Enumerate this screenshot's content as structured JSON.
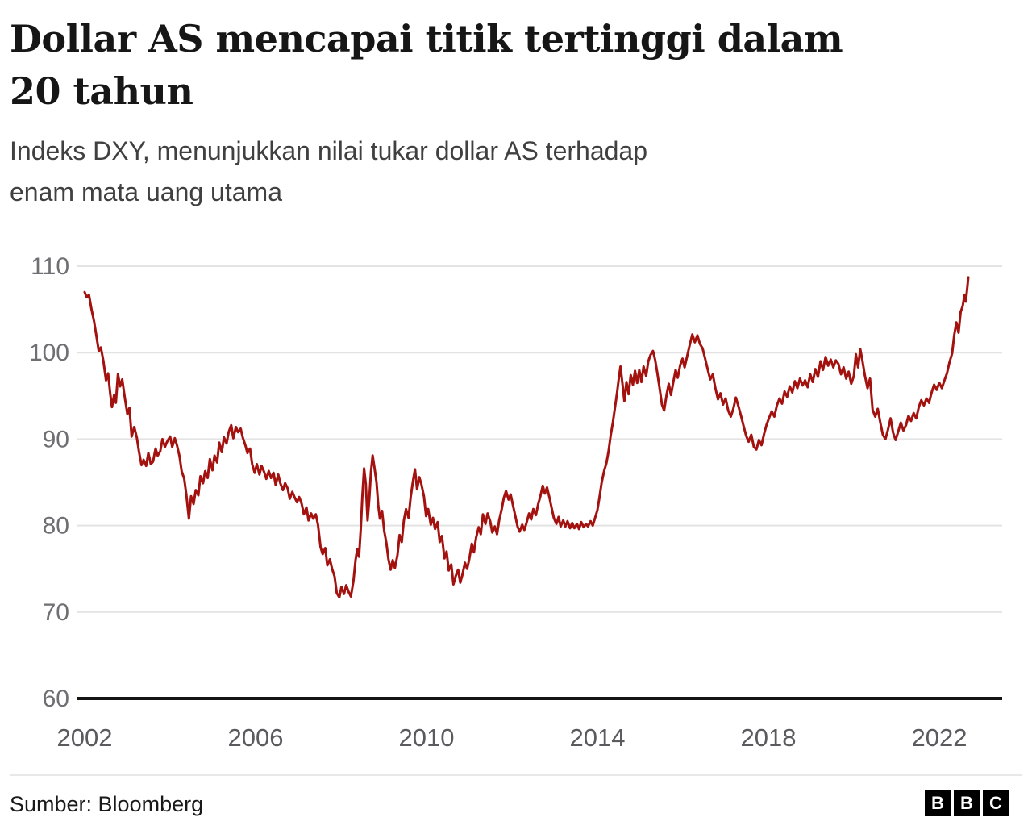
{
  "header": {
    "title": "Dollar AS mencapai titik tertinggi dalam 20 tahun",
    "title_lines": [
      "Dollar AS mencapai titik tertinggi dalam",
      "20 tahun"
    ],
    "subtitle": "Indeks DXY, menunjukkan nilai tukar dollar AS terhadap enam mata uang utama",
    "subtitle_lines": [
      "Indeks DXY, menunjukkan nilai tukar dollar AS terhadap",
      "enam mata uang utama"
    ]
  },
  "chart_data": {
    "type": "line",
    "series_name": "Indeks DXY",
    "line_color": "#a3120f",
    "grid": "horizontal",
    "legend": "none",
    "x_ticks": [
      2002,
      2006,
      2010,
      2014,
      2018,
      2022
    ],
    "y_ticks": [
      60,
      70,
      80,
      90,
      100,
      110
    ],
    "x_domain": [
      2002,
      2023
    ],
    "y_domain": [
      60,
      110
    ],
    "points": [
      [
        2002.0,
        107.0
      ],
      [
        2002.05,
        106.4
      ],
      [
        2002.1,
        106.7
      ],
      [
        2002.16,
        105.0
      ],
      [
        2002.22,
        103.6
      ],
      [
        2002.28,
        101.8
      ],
      [
        2002.33,
        100.2
      ],
      [
        2002.38,
        100.6
      ],
      [
        2002.44,
        99.0
      ],
      [
        2002.5,
        96.8
      ],
      [
        2002.55,
        97.6
      ],
      [
        2002.6,
        95.2
      ],
      [
        2002.64,
        93.7
      ],
      [
        2002.69,
        95.1
      ],
      [
        2002.73,
        94.2
      ],
      [
        2002.78,
        97.5
      ],
      [
        2002.83,
        96.1
      ],
      [
        2002.88,
        96.9
      ],
      [
        2002.94,
        94.8
      ],
      [
        2003.0,
        92.9
      ],
      [
        2003.05,
        93.6
      ],
      [
        2003.1,
        90.3
      ],
      [
        2003.16,
        91.4
      ],
      [
        2003.22,
        90.2
      ],
      [
        2003.27,
        88.6
      ],
      [
        2003.33,
        87.0
      ],
      [
        2003.38,
        87.6
      ],
      [
        2003.44,
        86.9
      ],
      [
        2003.49,
        88.4
      ],
      [
        2003.55,
        87.1
      ],
      [
        2003.6,
        87.4
      ],
      [
        2003.66,
        88.9
      ],
      [
        2003.71,
        88.1
      ],
      [
        2003.77,
        88.6
      ],
      [
        2003.82,
        90.0
      ],
      [
        2003.88,
        89.1
      ],
      [
        2003.93,
        89.7
      ],
      [
        2004.0,
        90.3
      ],
      [
        2004.05,
        89.1
      ],
      [
        2004.11,
        90.1
      ],
      [
        2004.16,
        89.3
      ],
      [
        2004.22,
        88.0
      ],
      [
        2004.27,
        86.3
      ],
      [
        2004.33,
        85.4
      ],
      [
        2004.38,
        83.6
      ],
      [
        2004.44,
        80.8
      ],
      [
        2004.49,
        83.4
      ],
      [
        2004.55,
        82.5
      ],
      [
        2004.6,
        84.1
      ],
      [
        2004.66,
        83.5
      ],
      [
        2004.71,
        85.7
      ],
      [
        2004.77,
        84.9
      ],
      [
        2004.82,
        86.3
      ],
      [
        2004.88,
        85.5
      ],
      [
        2004.93,
        87.7
      ],
      [
        2004.99,
        86.4
      ],
      [
        2005.04,
        88.1
      ],
      [
        2005.1,
        87.3
      ],
      [
        2005.15,
        89.6
      ],
      [
        2005.21,
        88.5
      ],
      [
        2005.26,
        90.2
      ],
      [
        2005.32,
        89.5
      ],
      [
        2005.37,
        90.8
      ],
      [
        2005.43,
        91.6
      ],
      [
        2005.48,
        90.1
      ],
      [
        2005.54,
        91.4
      ],
      [
        2005.59,
        90.8
      ],
      [
        2005.65,
        91.2
      ],
      [
        2005.7,
        90.2
      ],
      [
        2005.76,
        89.3
      ],
      [
        2005.81,
        88.4
      ],
      [
        2005.87,
        88.9
      ],
      [
        2005.92,
        87.1
      ],
      [
        2005.98,
        86.1
      ],
      [
        2006.03,
        87.1
      ],
      [
        2006.09,
        85.9
      ],
      [
        2006.14,
        86.9
      ],
      [
        2006.2,
        86.2
      ],
      [
        2006.25,
        85.4
      ],
      [
        2006.31,
        86.3
      ],
      [
        2006.36,
        85.5
      ],
      [
        2006.42,
        86.1
      ],
      [
        2006.47,
        84.7
      ],
      [
        2006.53,
        85.9
      ],
      [
        2006.58,
        84.9
      ],
      [
        2006.64,
        84.1
      ],
      [
        2006.69,
        84.9
      ],
      [
        2006.75,
        84.3
      ],
      [
        2006.8,
        83.1
      ],
      [
        2006.86,
        83.9
      ],
      [
        2006.91,
        83.3
      ],
      [
        2006.97,
        82.7
      ],
      [
        2007.02,
        83.3
      ],
      [
        2007.08,
        82.5
      ],
      [
        2007.13,
        81.3
      ],
      [
        2007.19,
        82.1
      ],
      [
        2007.24,
        80.6
      ],
      [
        2007.3,
        81.4
      ],
      [
        2007.35,
        80.8
      ],
      [
        2007.41,
        81.3
      ],
      [
        2007.46,
        80.1
      ],
      [
        2007.52,
        77.5
      ],
      [
        2007.57,
        76.7
      ],
      [
        2007.63,
        77.4
      ],
      [
        2007.68,
        75.4
      ],
      [
        2007.74,
        76.1
      ],
      [
        2007.79,
        75.0
      ],
      [
        2007.85,
        74.1
      ],
      [
        2007.9,
        72.2
      ],
      [
        2007.96,
        71.7
      ],
      [
        2008.01,
        72.9
      ],
      [
        2008.07,
        72.1
      ],
      [
        2008.12,
        73.1
      ],
      [
        2008.18,
        72.3
      ],
      [
        2008.23,
        71.8
      ],
      [
        2008.29,
        73.6
      ],
      [
        2008.34,
        76.0
      ],
      [
        2008.38,
        77.3
      ],
      [
        2008.42,
        76.4
      ],
      [
        2008.46,
        79.5
      ],
      [
        2008.5,
        83.5
      ],
      [
        2008.54,
        86.6
      ],
      [
        2008.58,
        84.8
      ],
      [
        2008.62,
        80.6
      ],
      [
        2008.66,
        83.0
      ],
      [
        2008.7,
        86.2
      ],
      [
        2008.74,
        88.1
      ],
      [
        2008.78,
        86.8
      ],
      [
        2008.83,
        85.0
      ],
      [
        2008.87,
        82.4
      ],
      [
        2008.91,
        80.8
      ],
      [
        2008.96,
        81.7
      ],
      [
        2009.01,
        79.4
      ],
      [
        2009.06,
        78.0
      ],
      [
        2009.11,
        76.1
      ],
      [
        2009.16,
        74.9
      ],
      [
        2009.21,
        76.0
      ],
      [
        2009.26,
        75.1
      ],
      [
        2009.32,
        76.6
      ],
      [
        2009.37,
        78.9
      ],
      [
        2009.42,
        78.1
      ],
      [
        2009.47,
        80.6
      ],
      [
        2009.52,
        81.9
      ],
      [
        2009.58,
        80.9
      ],
      [
        2009.63,
        83.3
      ],
      [
        2009.68,
        85.0
      ],
      [
        2009.73,
        86.5
      ],
      [
        2009.78,
        84.2
      ],
      [
        2009.83,
        85.6
      ],
      [
        2009.88,
        84.8
      ],
      [
        2009.94,
        83.4
      ],
      [
        2009.99,
        81.1
      ],
      [
        2010.04,
        81.9
      ],
      [
        2010.1,
        80.1
      ],
      [
        2010.15,
        80.9
      ],
      [
        2010.2,
        79.6
      ],
      [
        2010.26,
        80.4
      ],
      [
        2010.31,
        78.1
      ],
      [
        2010.36,
        78.8
      ],
      [
        2010.42,
        76.2
      ],
      [
        2010.47,
        77.0
      ],
      [
        2010.52,
        74.8
      ],
      [
        2010.58,
        75.5
      ],
      [
        2010.63,
        73.2
      ],
      [
        2010.68,
        74.1
      ],
      [
        2010.74,
        74.9
      ],
      [
        2010.79,
        73.4
      ],
      [
        2010.84,
        74.3
      ],
      [
        2010.9,
        75.7
      ],
      [
        2010.95,
        75.0
      ],
      [
        2011.0,
        76.1
      ],
      [
        2011.06,
        77.9
      ],
      [
        2011.11,
        76.9
      ],
      [
        2011.16,
        78.6
      ],
      [
        2011.22,
        79.8
      ],
      [
        2011.27,
        79.0
      ],
      [
        2011.32,
        81.3
      ],
      [
        2011.38,
        80.2
      ],
      [
        2011.43,
        81.4
      ],
      [
        2011.49,
        80.5
      ],
      [
        2011.54,
        79.2
      ],
      [
        2011.6,
        79.9
      ],
      [
        2011.65,
        79.0
      ],
      [
        2011.7,
        80.6
      ],
      [
        2011.76,
        81.9
      ],
      [
        2011.81,
        83.2
      ],
      [
        2011.86,
        84.0
      ],
      [
        2011.92,
        83.0
      ],
      [
        2011.97,
        83.6
      ],
      [
        2012.02,
        82.4
      ],
      [
        2012.08,
        81.1
      ],
      [
        2012.13,
        79.9
      ],
      [
        2012.18,
        79.3
      ],
      [
        2012.24,
        80.1
      ],
      [
        2012.29,
        79.5
      ],
      [
        2012.34,
        80.3
      ],
      [
        2012.4,
        81.4
      ],
      [
        2012.45,
        80.7
      ],
      [
        2012.5,
        81.9
      ],
      [
        2012.56,
        81.2
      ],
      [
        2012.61,
        82.4
      ],
      [
        2012.66,
        83.3
      ],
      [
        2012.72,
        84.6
      ],
      [
        2012.77,
        83.7
      ],
      [
        2012.82,
        84.4
      ],
      [
        2012.88,
        83.2
      ],
      [
        2012.93,
        82.0
      ],
      [
        2012.98,
        80.9
      ],
      [
        2013.04,
        80.2
      ],
      [
        2013.09,
        81.0
      ],
      [
        2013.14,
        79.9
      ],
      [
        2013.2,
        80.6
      ],
      [
        2013.25,
        79.9
      ],
      [
        2013.3,
        80.5
      ],
      [
        2013.36,
        79.7
      ],
      [
        2013.41,
        80.3
      ],
      [
        2013.46,
        79.7
      ],
      [
        2013.52,
        80.2
      ],
      [
        2013.57,
        79.6
      ],
      [
        2013.62,
        80.4
      ],
      [
        2013.68,
        79.8
      ],
      [
        2013.73,
        80.2
      ],
      [
        2013.78,
        79.9
      ],
      [
        2013.84,
        80.5
      ],
      [
        2013.89,
        80.0
      ],
      [
        2013.94,
        80.8
      ],
      [
        2014.0,
        81.8
      ],
      [
        2014.05,
        83.3
      ],
      [
        2014.1,
        85.0
      ],
      [
        2014.16,
        86.4
      ],
      [
        2014.21,
        87.2
      ],
      [
        2014.26,
        88.6
      ],
      [
        2014.31,
        90.4
      ],
      [
        2014.36,
        91.9
      ],
      [
        2014.41,
        93.6
      ],
      [
        2014.46,
        95.4
      ],
      [
        2014.5,
        97.0
      ],
      [
        2014.54,
        98.4
      ],
      [
        2014.59,
        96.2
      ],
      [
        2014.63,
        94.4
      ],
      [
        2014.68,
        96.6
      ],
      [
        2014.73,
        95.2
      ],
      [
        2014.78,
        97.4
      ],
      [
        2014.83,
        96.3
      ],
      [
        2014.88,
        97.9
      ],
      [
        2014.93,
        96.5
      ],
      [
        2014.98,
        98.0
      ],
      [
        2015.03,
        96.6
      ],
      [
        2015.08,
        98.4
      ],
      [
        2015.14,
        97.3
      ],
      [
        2015.19,
        99.0
      ],
      [
        2015.24,
        99.7
      ],
      [
        2015.3,
        100.2
      ],
      [
        2015.35,
        99.2
      ],
      [
        2015.4,
        97.7
      ],
      [
        2015.46,
        95.7
      ],
      [
        2015.51,
        94.0
      ],
      [
        2015.56,
        93.3
      ],
      [
        2015.62,
        95.2
      ],
      [
        2015.67,
        96.4
      ],
      [
        2015.72,
        95.1
      ],
      [
        2015.78,
        96.7
      ],
      [
        2015.83,
        98.0
      ],
      [
        2015.88,
        97.1
      ],
      [
        2015.94,
        98.6
      ],
      [
        2015.99,
        99.3
      ],
      [
        2016.04,
        98.3
      ],
      [
        2016.1,
        99.6
      ],
      [
        2016.16,
        100.9
      ],
      [
        2016.22,
        102.1
      ],
      [
        2016.28,
        101.2
      ],
      [
        2016.34,
        102.0
      ],
      [
        2016.4,
        101.0
      ],
      [
        2016.46,
        100.5
      ],
      [
        2016.52,
        99.3
      ],
      [
        2016.58,
        98.1
      ],
      [
        2016.64,
        96.9
      ],
      [
        2016.7,
        97.5
      ],
      [
        2016.76,
        95.9
      ],
      [
        2016.82,
        94.6
      ],
      [
        2016.88,
        95.3
      ],
      [
        2016.94,
        94.0
      ],
      [
        2017.0,
        94.7
      ],
      [
        2017.06,
        93.3
      ],
      [
        2017.12,
        92.6
      ],
      [
        2017.18,
        93.5
      ],
      [
        2017.24,
        94.8
      ],
      [
        2017.3,
        93.8
      ],
      [
        2017.36,
        92.7
      ],
      [
        2017.42,
        91.5
      ],
      [
        2017.48,
        90.4
      ],
      [
        2017.54,
        89.7
      ],
      [
        2017.6,
        90.5
      ],
      [
        2017.66,
        89.1
      ],
      [
        2017.72,
        88.8
      ],
      [
        2017.78,
        89.9
      ],
      [
        2017.84,
        89.3
      ],
      [
        2017.9,
        90.6
      ],
      [
        2017.96,
        91.7
      ],
      [
        2018.02,
        92.5
      ],
      [
        2018.08,
        93.2
      ],
      [
        2018.14,
        92.6
      ],
      [
        2018.2,
        93.9
      ],
      [
        2018.26,
        94.7
      ],
      [
        2018.32,
        94.1
      ],
      [
        2018.38,
        95.5
      ],
      [
        2018.44,
        94.9
      ],
      [
        2018.5,
        96.1
      ],
      [
        2018.56,
        95.4
      ],
      [
        2018.62,
        96.7
      ],
      [
        2018.68,
        95.9
      ],
      [
        2018.74,
        97.0
      ],
      [
        2018.8,
        96.2
      ],
      [
        2018.86,
        96.8
      ],
      [
        2018.92,
        96.0
      ],
      [
        2018.98,
        97.5
      ],
      [
        2019.04,
        96.6
      ],
      [
        2019.1,
        98.1
      ],
      [
        2019.16,
        97.2
      ],
      [
        2019.22,
        99.0
      ],
      [
        2019.28,
        98.0
      ],
      [
        2019.34,
        99.5
      ],
      [
        2019.4,
        98.5
      ],
      [
        2019.46,
        99.2
      ],
      [
        2019.52,
        98.3
      ],
      [
        2019.58,
        99.1
      ],
      [
        2019.64,
        98.7
      ],
      [
        2019.7,
        97.5
      ],
      [
        2019.76,
        98.3
      ],
      [
        2019.82,
        97.0
      ],
      [
        2019.88,
        97.8
      ],
      [
        2019.94,
        96.4
      ],
      [
        2020.0,
        97.3
      ],
      [
        2020.05,
        99.8
      ],
      [
        2020.1,
        98.3
      ],
      [
        2020.15,
        100.4
      ],
      [
        2020.2,
        99.1
      ],
      [
        2020.26,
        97.3
      ],
      [
        2020.32,
        95.9
      ],
      [
        2020.38,
        97.0
      ],
      [
        2020.44,
        93.4
      ],
      [
        2020.5,
        92.6
      ],
      [
        2020.56,
        93.5
      ],
      [
        2020.62,
        91.9
      ],
      [
        2020.68,
        90.5
      ],
      [
        2020.74,
        90.0
      ],
      [
        2020.8,
        91.1
      ],
      [
        2020.86,
        92.4
      ],
      [
        2020.92,
        90.7
      ],
      [
        2020.98,
        89.9
      ],
      [
        2021.04,
        90.9
      ],
      [
        2021.1,
        91.9
      ],
      [
        2021.16,
        91.0
      ],
      [
        2021.22,
        91.6
      ],
      [
        2021.28,
        92.7
      ],
      [
        2021.34,
        92.1
      ],
      [
        2021.4,
        93.0
      ],
      [
        2021.46,
        92.4
      ],
      [
        2021.52,
        93.7
      ],
      [
        2021.58,
        94.5
      ],
      [
        2021.64,
        93.9
      ],
      [
        2021.7,
        94.7
      ],
      [
        2021.76,
        94.2
      ],
      [
        2021.82,
        95.4
      ],
      [
        2021.88,
        96.3
      ],
      [
        2021.94,
        95.7
      ],
      [
        2022.0,
        96.5
      ],
      [
        2022.06,
        95.9
      ],
      [
        2022.12,
        96.8
      ],
      [
        2022.18,
        97.6
      ],
      [
        2022.24,
        98.9
      ],
      [
        2022.3,
        99.9
      ],
      [
        2022.35,
        102.0
      ],
      [
        2022.4,
        103.5
      ],
      [
        2022.45,
        102.3
      ],
      [
        2022.5,
        104.7
      ],
      [
        2022.55,
        105.4
      ],
      [
        2022.59,
        106.7
      ],
      [
        2022.62,
        105.9
      ],
      [
        2022.65,
        107.3
      ],
      [
        2022.68,
        108.7
      ]
    ]
  },
  "footer": {
    "source": "Sumber: Bloomberg",
    "logo_letters": [
      "B",
      "B",
      "C"
    ]
  }
}
